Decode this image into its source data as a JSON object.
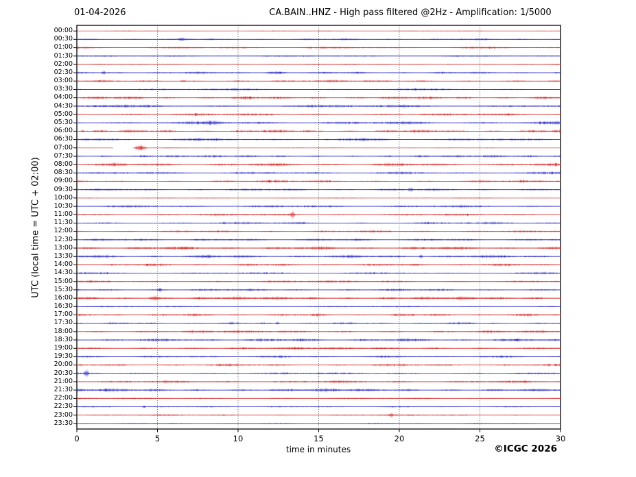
{
  "footer": {
    "copyright": "©ICGC 2026"
  },
  "chart_data": {
    "type": "line",
    "subtype": "helicorder-daily-seismogram",
    "date": "01-04-2026",
    "title": "CA.BAIN..HNZ - High pass filtered @2Hz - Amplification: 1/5000",
    "station": "CA.BAIN..HNZ",
    "filter": "High pass filtered @2Hz",
    "amplification": "1/5000",
    "ylabel": "UTC (local time = UTC + 02:00)",
    "xlabel": "time in minutes",
    "xlim": [
      0,
      30
    ],
    "x_ticks": [
      0,
      5,
      10,
      15,
      20,
      25,
      30
    ],
    "grid": "vertical dotted lines every 5 minutes",
    "legend_position": "none",
    "row_interval_minutes": 30,
    "trace_colors": {
      "red": "#d42020",
      "blue": "#2222c4"
    },
    "frame_color": "#000000",
    "grid_color": "#444444",
    "rows": [
      {
        "time": "00:00",
        "color": "red",
        "amp": 0.5
      },
      {
        "time": "00:30",
        "color": "blue",
        "amp": 1.0,
        "events": [
          {
            "min": 6.3,
            "dur": 0.4,
            "amp": 1.3
          }
        ]
      },
      {
        "time": "01:00",
        "color": "red",
        "amp": 1.2
      },
      {
        "time": "01:30",
        "color": "blue",
        "amp": 0.9
      },
      {
        "time": "02:00",
        "color": "red",
        "amp": 0.7
      },
      {
        "time": "02:30",
        "color": "blue",
        "amp": 1.2,
        "events": [
          {
            "min": 1.5,
            "dur": 0.3,
            "amp": 2.0
          },
          {
            "min": 11.5,
            "dur": 1.5,
            "amp": 1.2
          }
        ]
      },
      {
        "time": "03:00",
        "color": "red",
        "amp": 1.3,
        "events": [
          {
            "min": 6.4,
            "dur": 0.4,
            "amp": 1.3
          }
        ]
      },
      {
        "time": "03:30",
        "color": "blue",
        "amp": 1.2
      },
      {
        "time": "04:00",
        "color": "red",
        "amp": 1.6
      },
      {
        "time": "04:30",
        "color": "blue",
        "amp": 1.7
      },
      {
        "time": "05:00",
        "color": "red",
        "amp": 1.4
      },
      {
        "time": "05:30",
        "color": "blue",
        "amp": 1.8,
        "events": [
          {
            "min": 7.8,
            "dur": 1.2,
            "amp": 1.6
          }
        ]
      },
      {
        "time": "06:00",
        "color": "red",
        "amp": 1.7,
        "events": [
          {
            "min": 0.2,
            "dur": 0.3,
            "amp": 1.8
          }
        ]
      },
      {
        "time": "06:30",
        "color": "blue",
        "amp": 1.6
      },
      {
        "time": "07:00",
        "color": "red",
        "amp": 0.4,
        "gaps": [
          [
            2.25,
            3.5
          ]
        ],
        "events": [
          {
            "min": 3.5,
            "dur": 0.9,
            "amp": 3.0
          }
        ]
      },
      {
        "time": "07:30",
        "color": "blue",
        "amp": 1.3
      },
      {
        "time": "08:00",
        "color": "red",
        "amp": 1.8
      },
      {
        "time": "08:30",
        "color": "blue",
        "amp": 1.4
      },
      {
        "time": "09:00",
        "color": "red",
        "amp": 1.4
      },
      {
        "time": "09:30",
        "color": "blue",
        "amp": 1.3,
        "events": [
          {
            "min": 20.5,
            "dur": 0.4,
            "amp": 1.8
          }
        ]
      },
      {
        "time": "10:00",
        "color": "red",
        "amp": 0.5
      },
      {
        "time": "10:30",
        "color": "blue",
        "amp": 1.4
      },
      {
        "time": "11:00",
        "color": "red",
        "amp": 1.3,
        "events": [
          {
            "min": 13.2,
            "dur": 0.35,
            "amp": 3.2
          }
        ]
      },
      {
        "time": "11:30",
        "color": "blue",
        "amp": 1.3
      },
      {
        "time": "12:00",
        "color": "red",
        "amp": 1.3
      },
      {
        "time": "12:30",
        "color": "blue",
        "amp": 1.4
      },
      {
        "time": "13:00",
        "color": "red",
        "amp": 1.8
      },
      {
        "time": "13:30",
        "color": "blue",
        "amp": 1.7,
        "events": [
          {
            "min": 21.2,
            "dur": 0.3,
            "amp": 2.2
          }
        ]
      },
      {
        "time": "14:00",
        "color": "red",
        "amp": 1.4
      },
      {
        "time": "14:30",
        "color": "blue",
        "amp": 1.2
      },
      {
        "time": "15:00",
        "color": "red",
        "amp": 1.4
      },
      {
        "time": "15:30",
        "color": "blue",
        "amp": 1.3,
        "events": [
          {
            "min": 5.0,
            "dur": 0.3,
            "amp": 2.4
          }
        ]
      },
      {
        "time": "16:00",
        "color": "red",
        "amp": 1.8,
        "events": [
          {
            "min": 4.4,
            "dur": 0.8,
            "amp": 2.2
          }
        ]
      },
      {
        "time": "16:30",
        "color": "blue",
        "amp": 0.8
      },
      {
        "time": "17:00",
        "color": "red",
        "amp": 1.4
      },
      {
        "time": "17:30",
        "color": "blue",
        "amp": 1.2,
        "events": [
          {
            "min": 12.3,
            "dur": 0.3,
            "amp": 1.4
          }
        ]
      },
      {
        "time": "18:00",
        "color": "red",
        "amp": 1.5
      },
      {
        "time": "18:30",
        "color": "blue",
        "amp": 1.7
      },
      {
        "time": "19:00",
        "color": "red",
        "amp": 1.4
      },
      {
        "time": "19:30",
        "color": "blue",
        "amp": 1.3,
        "events": [
          {
            "min": 12.5,
            "dur": 0.3,
            "amp": 1.4
          }
        ]
      },
      {
        "time": "20:00",
        "color": "red",
        "amp": 1.4
      },
      {
        "time": "20:30",
        "color": "blue",
        "amp": 1.2,
        "events": [
          {
            "min": 0.4,
            "dur": 0.4,
            "amp": 2.4
          }
        ]
      },
      {
        "time": "21:00",
        "color": "red",
        "amp": 1.4
      },
      {
        "time": "21:30",
        "color": "blue",
        "amp": 1.8
      },
      {
        "time": "22:00",
        "color": "red",
        "amp": 0.8
      },
      {
        "time": "22:30",
        "color": "blue",
        "amp": 0.9,
        "events": [
          {
            "min": 4.0,
            "dur": 0.3,
            "amp": 1.4
          }
        ]
      },
      {
        "time": "23:00",
        "color": "red",
        "amp": 0.9,
        "events": [
          {
            "min": 19.3,
            "dur": 0.4,
            "amp": 1.8
          }
        ]
      },
      {
        "time": "23:30",
        "color": "blue",
        "amp": 0.8
      }
    ]
  }
}
